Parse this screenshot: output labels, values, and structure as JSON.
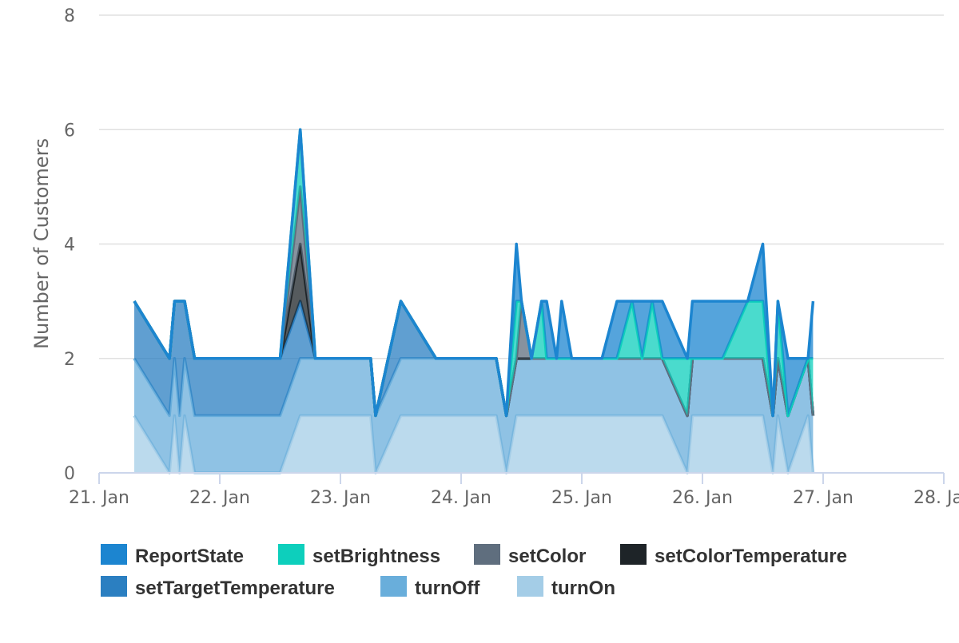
{
  "chart_data": {
    "type": "area",
    "stacked": true,
    "title": "",
    "xlabel": "",
    "ylabel": "Number of Customers",
    "ylim": [
      0,
      8
    ],
    "yticks": [
      0,
      2,
      4,
      6,
      8
    ],
    "xlim": [
      "2019-01-21",
      "2019-01-28"
    ],
    "xticks": [
      {
        "date": "2019-01-21",
        "label": "21. Jan"
      },
      {
        "date": "2019-01-22",
        "label": "22. Jan"
      },
      {
        "date": "2019-01-23",
        "label": "23. Jan"
      },
      {
        "date": "2019-01-24",
        "label": "24. Jan"
      },
      {
        "date": "2019-01-25",
        "label": "25. Jan"
      },
      {
        "date": "2019-01-26",
        "label": "26. Jan"
      },
      {
        "date": "2019-01-27",
        "label": "27. Jan"
      },
      {
        "date": "2019-01-28",
        "label": "28. Jan"
      }
    ],
    "grid": true,
    "legend_position": "bottom",
    "x": [
      "2019-01-21 07:00",
      "2019-01-21 14:00",
      "2019-01-21 15:00",
      "2019-01-21 16:00",
      "2019-01-21 17:00",
      "2019-01-21 19:00",
      "2019-01-22 09:00",
      "2019-01-22 12:00",
      "2019-01-22 16:00",
      "2019-01-22 19:00",
      "2019-01-22 21:00",
      "2019-01-23 06:00",
      "2019-01-23 07:00",
      "2019-01-23 12:00",
      "2019-01-23 19:00",
      "2019-01-24 07:00",
      "2019-01-24 09:00",
      "2019-01-24 11:00",
      "2019-01-24 12:00",
      "2019-01-24 14:00",
      "2019-01-24 16:00",
      "2019-01-24 17:00",
      "2019-01-24 19:00",
      "2019-01-24 20:00",
      "2019-01-24 22:00",
      "2019-01-25 04:00",
      "2019-01-25 07:00",
      "2019-01-25 10:00",
      "2019-01-25 12:00",
      "2019-01-25 14:00",
      "2019-01-25 16:00",
      "2019-01-25 21:00",
      "2019-01-25 22:00",
      "2019-01-26 04:00",
      "2019-01-26 09:00",
      "2019-01-26 12:00",
      "2019-01-26 14:00",
      "2019-01-26 15:00",
      "2019-01-26 17:00",
      "2019-01-26 21:00",
      "2019-01-26 22:00"
    ],
    "series": [
      {
        "name": "ReportState",
        "color": "#1c85d0",
        "values": [
          0,
          0,
          0,
          0,
          0,
          0,
          0,
          0,
          0,
          0,
          0,
          0,
          0,
          0,
          0,
          0,
          0,
          1,
          0,
          0,
          0,
          1,
          0,
          1,
          0,
          0,
          1,
          0,
          1,
          0,
          1,
          0,
          1,
          1,
          0,
          1,
          0,
          0,
          1,
          0,
          1
        ]
      },
      {
        "name": "setBrightness",
        "color": "#0dcfbc",
        "values": [
          0,
          0,
          0,
          0,
          0,
          0,
          0,
          0,
          1,
          0,
          0,
          0,
          0,
          0,
          0,
          0,
          0,
          1,
          0,
          0,
          1,
          0,
          0,
          0,
          0,
          0,
          0,
          1,
          0,
          1,
          0,
          1,
          0,
          0,
          1,
          1,
          0,
          1,
          0,
          0,
          1
        ]
      },
      {
        "name": "setColor",
        "color": "#5f6e7e",
        "values": [
          0,
          0,
          0,
          0,
          0,
          0,
          0,
          0,
          1,
          0,
          0,
          0,
          0,
          0,
          0,
          0,
          0,
          0,
          1,
          0,
          0,
          0,
          0,
          0,
          0,
          0,
          0,
          0,
          0,
          0,
          0,
          0,
          0,
          0,
          0,
          0,
          0,
          0,
          0,
          0,
          0
        ]
      },
      {
        "name": "setColorTemperature",
        "color": "#1e2428",
        "values": [
          0,
          0,
          0,
          0,
          0,
          0,
          0,
          0,
          1,
          0,
          0,
          0,
          0,
          0,
          0,
          0,
          0,
          0,
          0,
          0,
          0,
          0,
          0,
          0,
          0,
          0,
          0,
          0,
          0,
          0,
          0,
          0,
          0,
          0,
          0,
          0,
          0,
          0,
          0,
          0,
          0
        ]
      },
      {
        "name": "setTargetTemperature",
        "color": "#2b7fc1",
        "values": [
          1,
          1,
          1,
          2,
          1,
          1,
          1,
          1,
          1,
          0,
          0,
          0,
          0,
          1,
          0,
          0,
          0,
          0,
          0,
          0,
          0,
          0,
          0,
          0,
          0,
          0,
          0,
          0,
          0,
          0,
          0,
          0,
          0,
          0,
          0,
          0,
          0,
          0,
          0,
          0,
          0
        ]
      },
      {
        "name": "turnOff",
        "color": "#69aedb",
        "values": [
          1,
          1,
          1,
          1,
          1,
          1,
          1,
          1,
          1,
          1,
          1,
          1,
          1,
          1,
          1,
          1,
          1,
          1,
          1,
          1,
          1,
          1,
          1,
          1,
          1,
          1,
          1,
          1,
          1,
          1,
          1,
          1,
          1,
          1,
          1,
          1,
          1,
          1,
          1,
          1,
          1
        ]
      },
      {
        "name": "turnOn",
        "color": "#a4cde7",
        "values": [
          1,
          0,
          1,
          0,
          1,
          0,
          0,
          0,
          1,
          1,
          1,
          1,
          0,
          1,
          1,
          1,
          0,
          1,
          1,
          1,
          1,
          1,
          1,
          1,
          1,
          1,
          1,
          1,
          1,
          1,
          1,
          0,
          1,
          1,
          1,
          1,
          0,
          1,
          0,
          1,
          0
        ]
      }
    ]
  }
}
